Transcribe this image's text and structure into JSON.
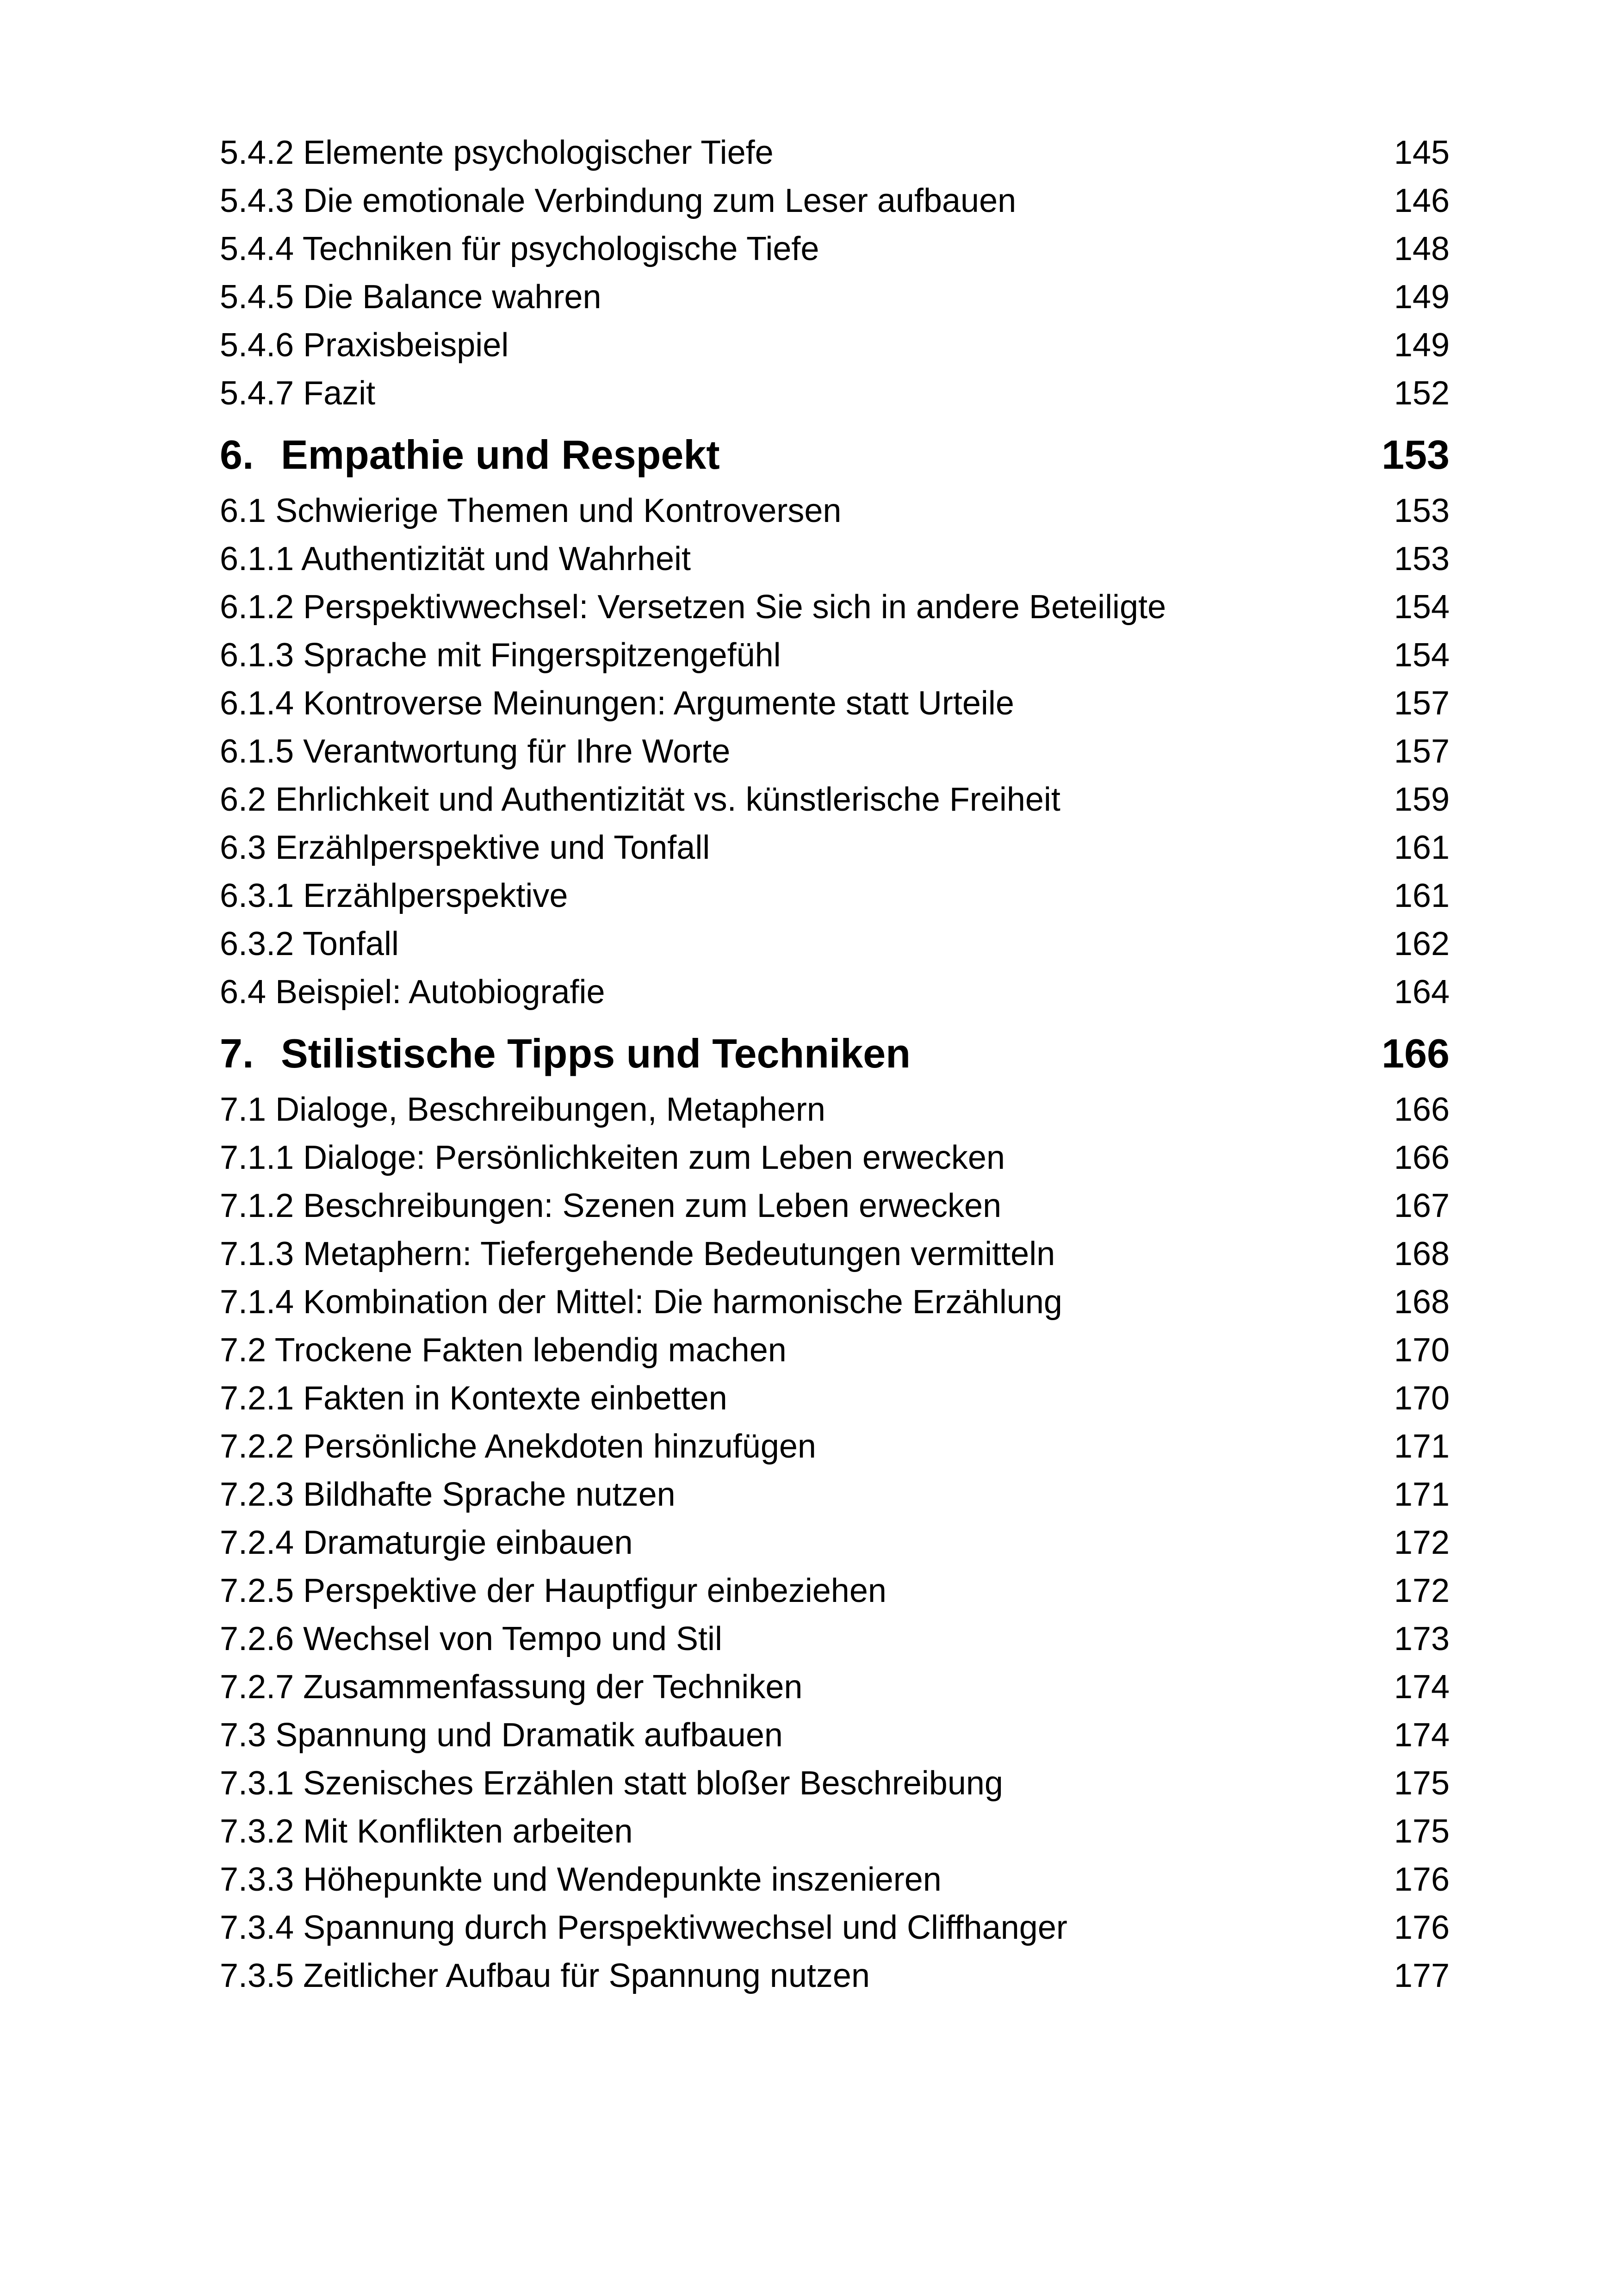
{
  "page": {
    "background_color": "#ffffff",
    "text_color": "#000000"
  },
  "toc": {
    "entries": [
      {
        "type": "entry",
        "label": "5.4.2 Elemente psychologischer Tiefe",
        "page": "145"
      },
      {
        "type": "entry",
        "label": "5.4.3 Die emotionale Verbindung zum Leser aufbauen",
        "page": "146"
      },
      {
        "type": "entry",
        "label": "5.4.4 Techniken für psychologische Tiefe",
        "page": "148"
      },
      {
        "type": "entry",
        "label": "5.4.5 Die Balance wahren",
        "page": "149"
      },
      {
        "type": "entry",
        "label": "5.4.6 Praxisbeispiel",
        "page": "149"
      },
      {
        "type": "entry",
        "label": "5.4.7 Fazit",
        "page": "152"
      },
      {
        "type": "chapter",
        "number": "6.",
        "label": "Empathie und Respekt",
        "page": "153"
      },
      {
        "type": "entry",
        "label": "6.1 Schwierige Themen und Kontroversen",
        "page": "153"
      },
      {
        "type": "entry",
        "label": "6.1.1 Authentizität und Wahrheit",
        "page": "153"
      },
      {
        "type": "entry",
        "label": "6.1.2 Perspektivwechsel: Versetzen Sie sich in andere Beteiligte",
        "page": "154"
      },
      {
        "type": "entry",
        "label": "6.1.3 Sprache mit Fingerspitzengefühl",
        "page": "154"
      },
      {
        "type": "entry",
        "label": "6.1.4 Kontroverse Meinungen: Argumente statt Urteile",
        "page": "157"
      },
      {
        "type": "entry",
        "label": "6.1.5 Verantwortung für Ihre Worte",
        "page": "157"
      },
      {
        "type": "entry",
        "label": "6.2 Ehrlichkeit und Authentizität vs. künstlerische Freiheit",
        "page": "159"
      },
      {
        "type": "entry",
        "label": "6.3 Erzählperspektive und Tonfall",
        "page": "161"
      },
      {
        "type": "entry",
        "label": "6.3.1 Erzählperspektive",
        "page": "161"
      },
      {
        "type": "entry",
        "label": "6.3.2 Tonfall",
        "page": "162"
      },
      {
        "type": "entry",
        "label": "6.4 Beispiel: Autobiografie",
        "page": "164"
      },
      {
        "type": "chapter",
        "number": "7.",
        "label": "Stilistische Tipps und Techniken",
        "page": "166"
      },
      {
        "type": "entry",
        "label": "7.1 Dialoge, Beschreibungen, Metaphern",
        "page": "166"
      },
      {
        "type": "entry",
        "label": "7.1.1 Dialoge: Persönlichkeiten zum Leben erwecken",
        "page": "166"
      },
      {
        "type": "entry",
        "label": "7.1.2 Beschreibungen: Szenen zum Leben erwecken",
        "page": "167"
      },
      {
        "type": "entry",
        "label": "7.1.3 Metaphern: Tiefergehende Bedeutungen vermitteln",
        "page": "168"
      },
      {
        "type": "entry",
        "label": "7.1.4 Kombination der Mittel: Die harmonische Erzählung",
        "page": "168"
      },
      {
        "type": "entry",
        "label": "7.2 Trockene Fakten lebendig machen",
        "page": "170"
      },
      {
        "type": "entry",
        "label": "7.2.1 Fakten in Kontexte einbetten",
        "page": "170"
      },
      {
        "type": "entry",
        "label": "7.2.2 Persönliche Anekdoten hinzufügen",
        "page": "171"
      },
      {
        "type": "entry",
        "label": "7.2.3 Bildhafte Sprache nutzen",
        "page": "171"
      },
      {
        "type": "entry",
        "label": "7.2.4 Dramaturgie einbauen",
        "page": "172"
      },
      {
        "type": "entry",
        "label": "7.2.5 Perspektive der Hauptfigur einbeziehen",
        "page": "172"
      },
      {
        "type": "entry",
        "label": "7.2.6 Wechsel von Tempo und Stil",
        "page": "173"
      },
      {
        "type": "entry",
        "label": "7.2.7 Zusammenfassung der Techniken",
        "page": "174"
      },
      {
        "type": "entry",
        "label": "7.3 Spannung und Dramatik aufbauen",
        "page": "174"
      },
      {
        "type": "entry",
        "label": "7.3.1 Szenisches Erzählen statt bloßer Beschreibung",
        "page": "175"
      },
      {
        "type": "entry",
        "label": "7.3.2 Mit Konflikten arbeiten",
        "page": "175"
      },
      {
        "type": "entry",
        "label": "7.3.3 Höhepunkte und Wendepunkte inszenieren",
        "page": "176"
      },
      {
        "type": "entry",
        "label": "7.3.4 Spannung durch Perspektivwechsel und Cliffhanger",
        "page": "176"
      },
      {
        "type": "entry",
        "label": "7.3.5 Zeitlicher Aufbau für Spannung nutzen",
        "page": "177"
      }
    ]
  }
}
